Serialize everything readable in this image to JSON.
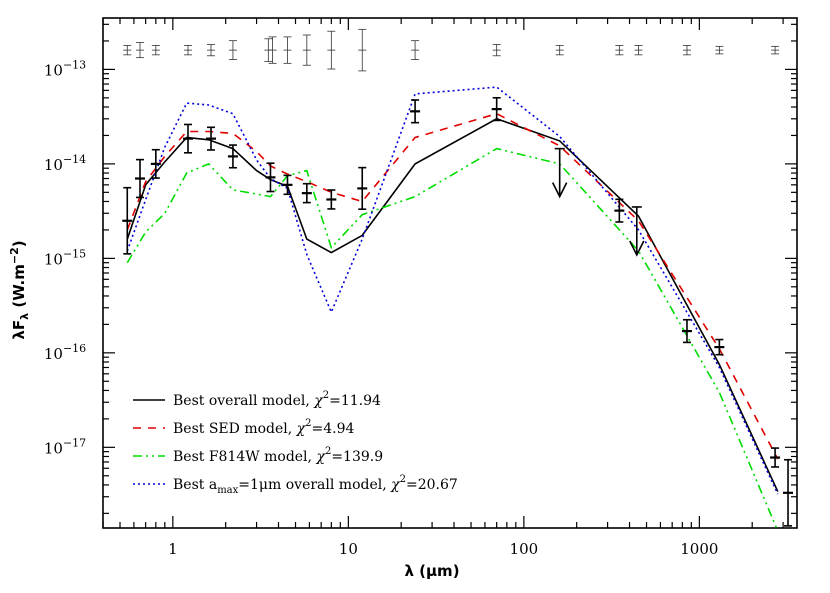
{
  "chart_data": {
    "type": "line",
    "xscale": "log",
    "yscale": "log",
    "xlim": [
      0.4,
      3600
    ],
    "ylim": [
      1.4e-18,
      3.5e-13
    ],
    "xlabel": "λ (μm)",
    "ylabel": "λF_λ (W.m^-2)",
    "x_ticks": [
      {
        "value": 1,
        "label": "1"
      },
      {
        "value": 10,
        "label": "10"
      },
      {
        "value": 100,
        "label": "100"
      },
      {
        "value": 1000,
        "label": "1000"
      }
    ],
    "y_ticks": [
      {
        "value": 1e-13,
        "base": "10",
        "exp": "−13"
      },
      {
        "value": 1e-14,
        "base": "10",
        "exp": "−14"
      },
      {
        "value": 1e-15,
        "base": "10",
        "exp": "−15"
      },
      {
        "value": 1e-16,
        "base": "10",
        "exp": "−16"
      },
      {
        "value": 1e-17,
        "base": "10",
        "exp": "−17"
      }
    ],
    "series": [
      {
        "name": "Best overall model, χ2=11.94",
        "color": "#000000",
        "dash": "solid",
        "x": [
          0.55,
          0.7,
          0.9,
          1.2,
          1.6,
          2.2,
          3.0,
          3.6,
          4.5,
          5.8,
          8.0,
          12,
          24,
          70,
          160,
          450,
          1300,
          2800
        ],
        "y": [
          1.6e-15,
          6e-15,
          1.05e-14,
          1.9e-14,
          1.8e-14,
          1.45e-14,
          8.5e-15,
          6.8e-15,
          5.8e-15,
          1.6e-15,
          1.15e-15,
          1.75e-15,
          1e-14,
          3e-14,
          1.75e-14,
          2.8e-15,
          7.5e-17,
          3.4e-18
        ]
      },
      {
        "name": "Best SED model, χ2=4.94",
        "color": "#e00000",
        "dash": "8,7",
        "x": [
          0.55,
          0.7,
          0.9,
          1.2,
          1.6,
          2.2,
          3.0,
          3.6,
          4.5,
          5.8,
          8.0,
          12,
          24,
          70,
          160,
          450,
          1300,
          2800
        ],
        "y": [
          2e-15,
          6.5e-15,
          1.2e-14,
          2.2e-14,
          2.2e-14,
          2.1e-14,
          1.35e-14,
          9.5e-15,
          7.8e-15,
          6.5e-15,
          5e-15,
          4e-15,
          1.9e-14,
          3.4e-14,
          1.55e-14,
          2.5e-15,
          1.1e-16,
          7.5e-18
        ]
      },
      {
        "name": "Best F814W model, χ2=139.9",
        "color": "#00dd00",
        "dash": "9,4,2,4,2,4",
        "x": [
          0.55,
          0.7,
          0.9,
          1.2,
          1.6,
          2.2,
          3.0,
          3.6,
          4.5,
          5.8,
          8.0,
          12,
          24,
          70,
          160,
          450,
          1300,
          2800
        ],
        "y": [
          9e-16,
          1.9e-15,
          3e-15,
          8e-15,
          1e-14,
          5.3e-15,
          4.8e-15,
          4.5e-15,
          7.5e-15,
          8.5e-15,
          1.3e-15,
          2.9e-15,
          4.5e-15,
          1.45e-14,
          1e-14,
          1.2e-15,
          3.8e-17,
          1.3e-18
        ]
      },
      {
        "name": "Best a_max=1μm overall model, χ2=20.67",
        "color": "#0000dd",
        "dash": "2,3",
        "x": [
          0.55,
          0.7,
          0.9,
          1.2,
          1.6,
          2.2,
          3.0,
          3.6,
          4.5,
          5.8,
          8.0,
          12,
          24,
          70,
          160,
          450,
          1300,
          2800
        ],
        "y": [
          1.2e-15,
          4.2e-15,
          1.5e-14,
          4.4e-14,
          4.2e-14,
          3.4e-14,
          1.1e-14,
          7e-15,
          5.5e-15,
          1.1e-15,
          2.7e-16,
          1.6e-15,
          5.5e-14,
          6.5e-14,
          1.95e-14,
          2e-15,
          7e-17,
          3.2e-18
        ]
      }
    ],
    "observations": [
      {
        "x": 0.55,
        "y": 2.5e-15,
        "err": 0.35
      },
      {
        "x": 0.65,
        "y": 7e-15,
        "err": 0.2
      },
      {
        "x": 0.8,
        "y": 1e-14,
        "err": 0.15
      },
      {
        "x": 1.22,
        "y": 1.85e-14,
        "err": 0.15
      },
      {
        "x": 1.65,
        "y": 1.85e-14,
        "err": 0.12
      },
      {
        "x": 2.2,
        "y": 1.2e-14,
        "err": 0.12
      },
      {
        "x": 3.6,
        "y": 7.2e-15,
        "err": 0.15
      },
      {
        "x": 4.5,
        "y": 6e-15,
        "err": 0.1
      },
      {
        "x": 5.8,
        "y": 4.9e-15,
        "err": 0.1
      },
      {
        "x": 8.0,
        "y": 4.2e-15,
        "err": 0.1
      },
      {
        "x": 12,
        "y": 5.5e-15,
        "err": 0.22
      },
      {
        "x": 24,
        "y": 3.6e-14,
        "err": 0.12
      },
      {
        "x": 70,
        "y": 3.8e-14,
        "err": 0.12
      },
      {
        "x": 350,
        "y": 3.2e-15,
        "err": 0.12
      },
      {
        "x": 850,
        "y": 1.7e-16,
        "err": 0.12
      },
      {
        "x": 1300,
        "y": 1.15e-16,
        "err": 0.08
      },
      {
        "x": 2700,
        "y": 7.8e-18,
        "err": 0.1
      },
      {
        "x": 3200,
        "y": 3.3e-18,
        "err": 0.35
      }
    ],
    "upper_limits": [
      {
        "x": 160,
        "y": 1.45e-14
      },
      {
        "x": 440,
        "y": 3.5e-15
      }
    ],
    "calib_errors": [
      {
        "x": 0.55,
        "err": 0.05
      },
      {
        "x": 0.65,
        "err": 0.08
      },
      {
        "x": 0.8,
        "err": 0.05
      },
      {
        "x": 1.22,
        "err": 0.05
      },
      {
        "x": 1.65,
        "err": 0.06
      },
      {
        "x": 2.2,
        "err": 0.1
      },
      {
        "x": 3.5,
        "err": 0.12
      },
      {
        "x": 3.7,
        "err": 0.14
      },
      {
        "x": 4.5,
        "err": 0.14
      },
      {
        "x": 5.8,
        "err": 0.16
      },
      {
        "x": 8.0,
        "err": 0.2
      },
      {
        "x": 12,
        "err": 0.22
      },
      {
        "x": 24,
        "err": 0.1
      },
      {
        "x": 70,
        "err": 0.06
      },
      {
        "x": 160,
        "err": 0.05
      },
      {
        "x": 350,
        "err": 0.05
      },
      {
        "x": 450,
        "err": 0.05
      },
      {
        "x": 850,
        "err": 0.05
      },
      {
        "x": 1300,
        "err": 0.04
      },
      {
        "x": 2700,
        "err": 0.04
      }
    ],
    "calib_level": 1.6e-13,
    "legend": {
      "placement": "lower-left",
      "entries": [
        {
          "pre": "Best overall model, ",
          "chi": "χ",
          "sup": "2",
          "post": "=11.94",
          "color": "#000000",
          "dash": "solid"
        },
        {
          "pre": "Best SED model, ",
          "chi": "χ",
          "sup": "2",
          "post": "=4.94",
          "color": "#e00000",
          "dash": "8,7"
        },
        {
          "pre": "Best F814W model, ",
          "chi": "χ",
          "sup": "2",
          "post": "=139.9",
          "color": "#00dd00",
          "dash": "9,4,2,4,2,4"
        },
        {
          "pre": "Best a",
          "sub": "max",
          "mid": "=1μm overall model, ",
          "chi": "χ",
          "sup": "2",
          "post": "=20.67",
          "color": "#0000dd",
          "dash": "2,3"
        }
      ]
    }
  }
}
